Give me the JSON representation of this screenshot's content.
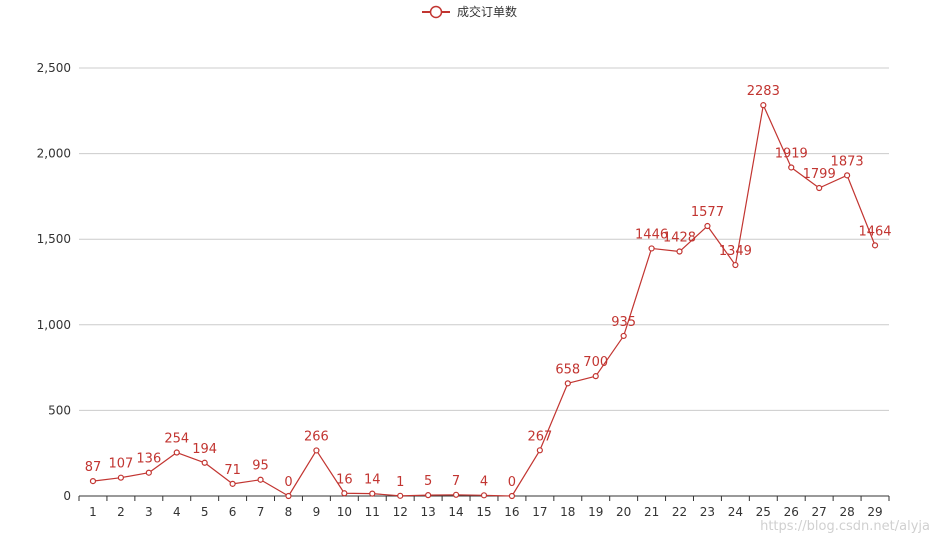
{
  "legend": {
    "label": "成交订单数"
  },
  "watermark": "https://blog.csdn.net/alyja",
  "colors": {
    "series": "#c23531",
    "grid": "#cccccc",
    "axis": "#333333"
  },
  "chart_data": {
    "type": "line",
    "categories": [
      "1",
      "2",
      "3",
      "4",
      "5",
      "6",
      "7",
      "8",
      "9",
      "10",
      "11",
      "12",
      "13",
      "14",
      "15",
      "16",
      "17",
      "18",
      "19",
      "20",
      "21",
      "22",
      "23",
      "24",
      "25",
      "26",
      "27",
      "28",
      "29"
    ],
    "series": [
      {
        "name": "成交订单数",
        "values": [
          87,
          107,
          136,
          254,
          194,
          71,
          95,
          0,
          266,
          16,
          14,
          1,
          5,
          7,
          4,
          0,
          267,
          658,
          700,
          935,
          1446,
          1428,
          1577,
          1349,
          2283,
          1919,
          1799,
          1873,
          1464
        ]
      }
    ],
    "ylim": [
      0,
      2500
    ],
    "yticks": [
      0,
      500,
      1000,
      1500,
      2000,
      2500
    ],
    "ytick_labels": [
      "0",
      "500",
      "1,000",
      "1,500",
      "2,000",
      "2,500"
    ],
    "grid": true,
    "legend_position": "top-center",
    "data_labels": true
  }
}
